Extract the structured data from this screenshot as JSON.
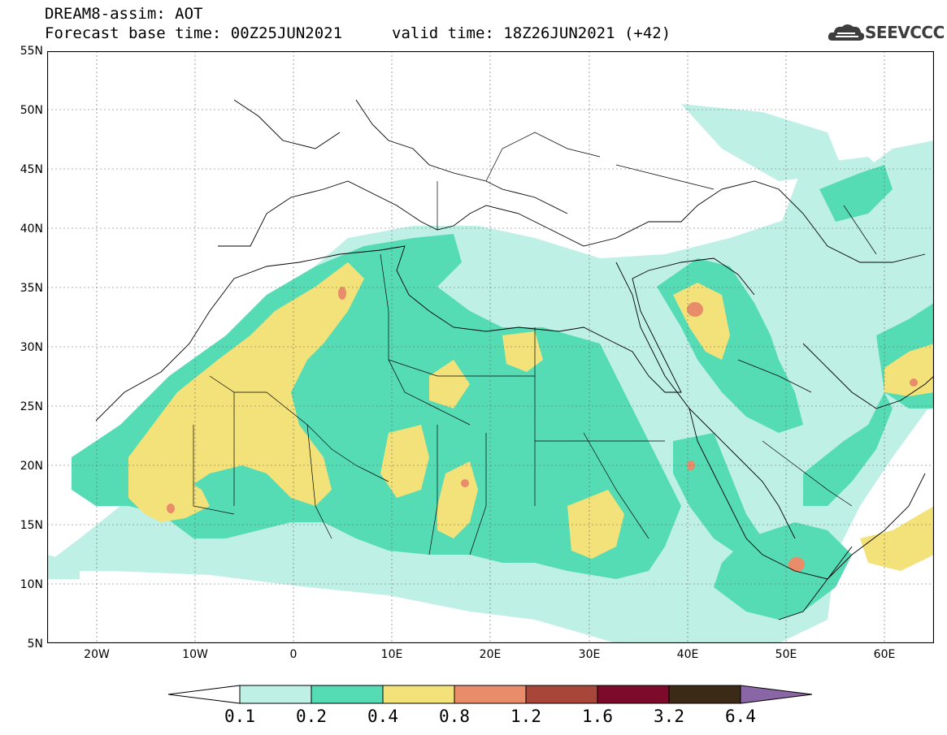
{
  "header": {
    "title": "DREAM8-assim: AOT",
    "base_time": "Forecast base time: 00Z25JUN2021",
    "valid_time": "valid time: 18Z26JUN2021 (+42)"
  },
  "logo": {
    "text": "SEEVCCC",
    "icon": "cloud-icon"
  },
  "axes": {
    "lat_labels": [
      "55N",
      "50N",
      "45N",
      "40N",
      "35N",
      "30N",
      "25N",
      "20N",
      "15N",
      "10N",
      "5N"
    ],
    "lon_labels": [
      "20W",
      "10W",
      "0",
      "10E",
      "20E",
      "30E",
      "40E",
      "50E",
      "60E"
    ],
    "lat_range": [
      5,
      55
    ],
    "lon_range": [
      -25,
      65
    ]
  },
  "colorbar": {
    "labels": [
      "0.1",
      "0.2",
      "0.4",
      "0.8",
      "1.2",
      "1.6",
      "3.2",
      "6.4"
    ],
    "colors": [
      "#bff0e6",
      "#55dcb4",
      "#f3e27a",
      "#e88c6a",
      "#a8463a",
      "#7d0a28",
      "#3a2a16"
    ],
    "over_color": "#8a66a6",
    "under_color": "#ffffff"
  }
}
